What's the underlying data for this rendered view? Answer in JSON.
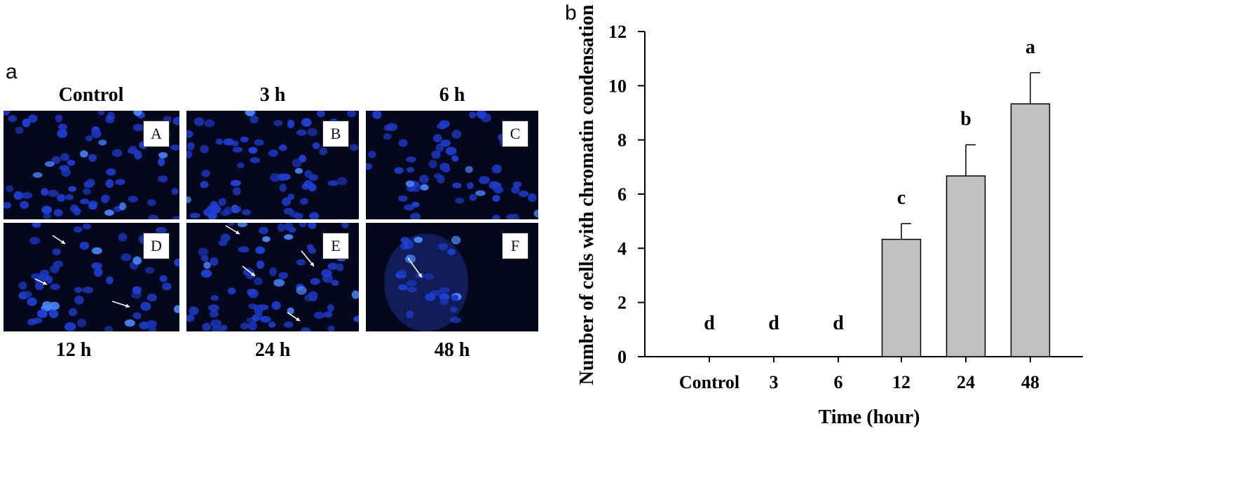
{
  "panel_a": {
    "letter": "a",
    "top_titles": [
      "Control",
      "3 h",
      "6 h"
    ],
    "bottom_titles": [
      "12 h",
      "24 h",
      "48 h"
    ],
    "images": [
      {
        "label": "A",
        "description_icon": "nuclei-micrograph"
      },
      {
        "label": "B",
        "description_icon": "nuclei-micrograph"
      },
      {
        "label": "C",
        "description_icon": "nuclei-micrograph"
      },
      {
        "label": "D",
        "description_icon": "nuclei-micrograph"
      },
      {
        "label": "E",
        "description_icon": "nuclei-micrograph"
      },
      {
        "label": "F",
        "description_icon": "nuclei-micrograph"
      }
    ]
  },
  "panel_b": {
    "letter": "b"
  },
  "chart_data": {
    "type": "bar",
    "categories": [
      "Control",
      "3",
      "6",
      "12",
      "24",
      "48"
    ],
    "values": [
      0,
      0,
      0,
      4.33,
      6.67,
      9.33
    ],
    "errors": [
      0,
      0,
      0,
      0.58,
      1.15,
      1.15
    ],
    "significance": [
      "d",
      "d",
      "d",
      "c",
      "b",
      "a"
    ],
    "xlabel": "Time  (hour)",
    "ylabel": "Number of cells with chromatin condensation",
    "ylim": [
      0,
      12
    ],
    "yticks": [
      0,
      2,
      4,
      6,
      8,
      10,
      12
    ],
    "bar_color": "#c0c0c0",
    "grid": false
  }
}
